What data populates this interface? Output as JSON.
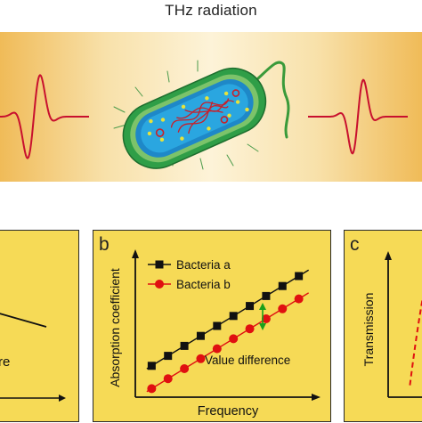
{
  "title": "THz radiation",
  "panel_b": {
    "label": "b",
    "xlabel": "Frequency",
    "ylabel": "Absorption coefficient",
    "legend": [
      "Bacteria a",
      "Bacteria b"
    ],
    "annotation": "Value difference"
  },
  "panel_a": {
    "annotation_fragment": "re"
  },
  "panel_c": {
    "label": "c",
    "ylabel": "Transmission"
  },
  "colors": {
    "wave": "#c8102e",
    "series_a": "#111111",
    "series_b": "#e01010",
    "annotation": "#1aa01a",
    "panel_bg": "#f6da56"
  },
  "chart_data": {
    "type": "scatter",
    "xlabel": "Frequency",
    "ylabel": "Absorption coefficient",
    "series": [
      {
        "name": "Bacteria a",
        "x": [
          1,
          2,
          3,
          4,
          5,
          6,
          7,
          8,
          9,
          10
        ],
        "y": [
          2.2,
          2.9,
          3.6,
          4.3,
          5.0,
          5.7,
          6.4,
          7.1,
          7.8,
          8.5
        ]
      },
      {
        "name": "Bacteria b",
        "x": [
          1,
          2,
          3,
          4,
          5,
          6,
          7,
          8,
          9,
          10
        ],
        "y": [
          0.6,
          1.3,
          2.0,
          2.7,
          3.4,
          4.1,
          4.8,
          5.5,
          6.2,
          6.9
        ]
      }
    ],
    "xlim": [
      0,
      11
    ],
    "ylim": [
      0,
      10
    ],
    "legend": "top-left",
    "grid": false
  }
}
